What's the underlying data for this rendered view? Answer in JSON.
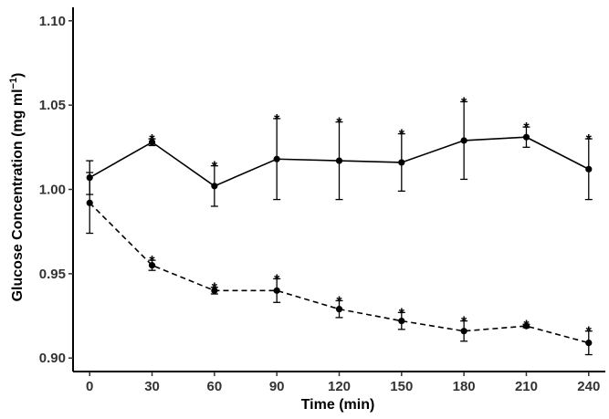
{
  "chart_data": {
    "type": "line",
    "title": "",
    "xlabel": "Time (min)",
    "ylabel_main": "Glucose Concentration (mg ml",
    "ylabel_sup": "−1",
    "ylabel_close": ")",
    "x": [
      0,
      30,
      60,
      90,
      120,
      150,
      180,
      210,
      240
    ],
    "x_tick_labels": [
      "0",
      "30",
      "60",
      "90",
      "120",
      "150",
      "180",
      "210",
      "240"
    ],
    "y_ticks": [
      0.9,
      0.95,
      1.0,
      1.05,
      1.1
    ],
    "y_tick_labels": [
      "0.90",
      "0.95",
      "1.00",
      "1.05",
      "1.10"
    ],
    "xlim": [
      -8,
      248
    ],
    "ylim": [
      0.892,
      1.108
    ],
    "grid": false,
    "legend": "none",
    "series": [
      {
        "line_style": "solid",
        "color": "#000000",
        "values": [
          1.007,
          1.028,
          1.002,
          1.018,
          1.017,
          1.016,
          1.029,
          1.031,
          1.012
        ],
        "error": [
          0.01,
          0.002,
          0.012,
          0.024,
          0.023,
          0.017,
          0.023,
          0.006,
          0.018
        ],
        "significance": [
          "",
          "*",
          "*",
          "*",
          "*",
          "*",
          "*",
          "*",
          "*"
        ]
      },
      {
        "line_style": "dashed",
        "color": "#000000",
        "values": [
          0.992,
          0.955,
          0.94,
          0.94,
          0.929,
          0.922,
          0.916,
          0.919,
          0.909
        ],
        "error": [
          0.018,
          0.003,
          0.002,
          0.007,
          0.005,
          0.005,
          0.006,
          0.001,
          0.007
        ],
        "significance": [
          "",
          "*",
          "*",
          "*",
          "*",
          "*",
          "*",
          "*",
          "*"
        ]
      }
    ]
  }
}
